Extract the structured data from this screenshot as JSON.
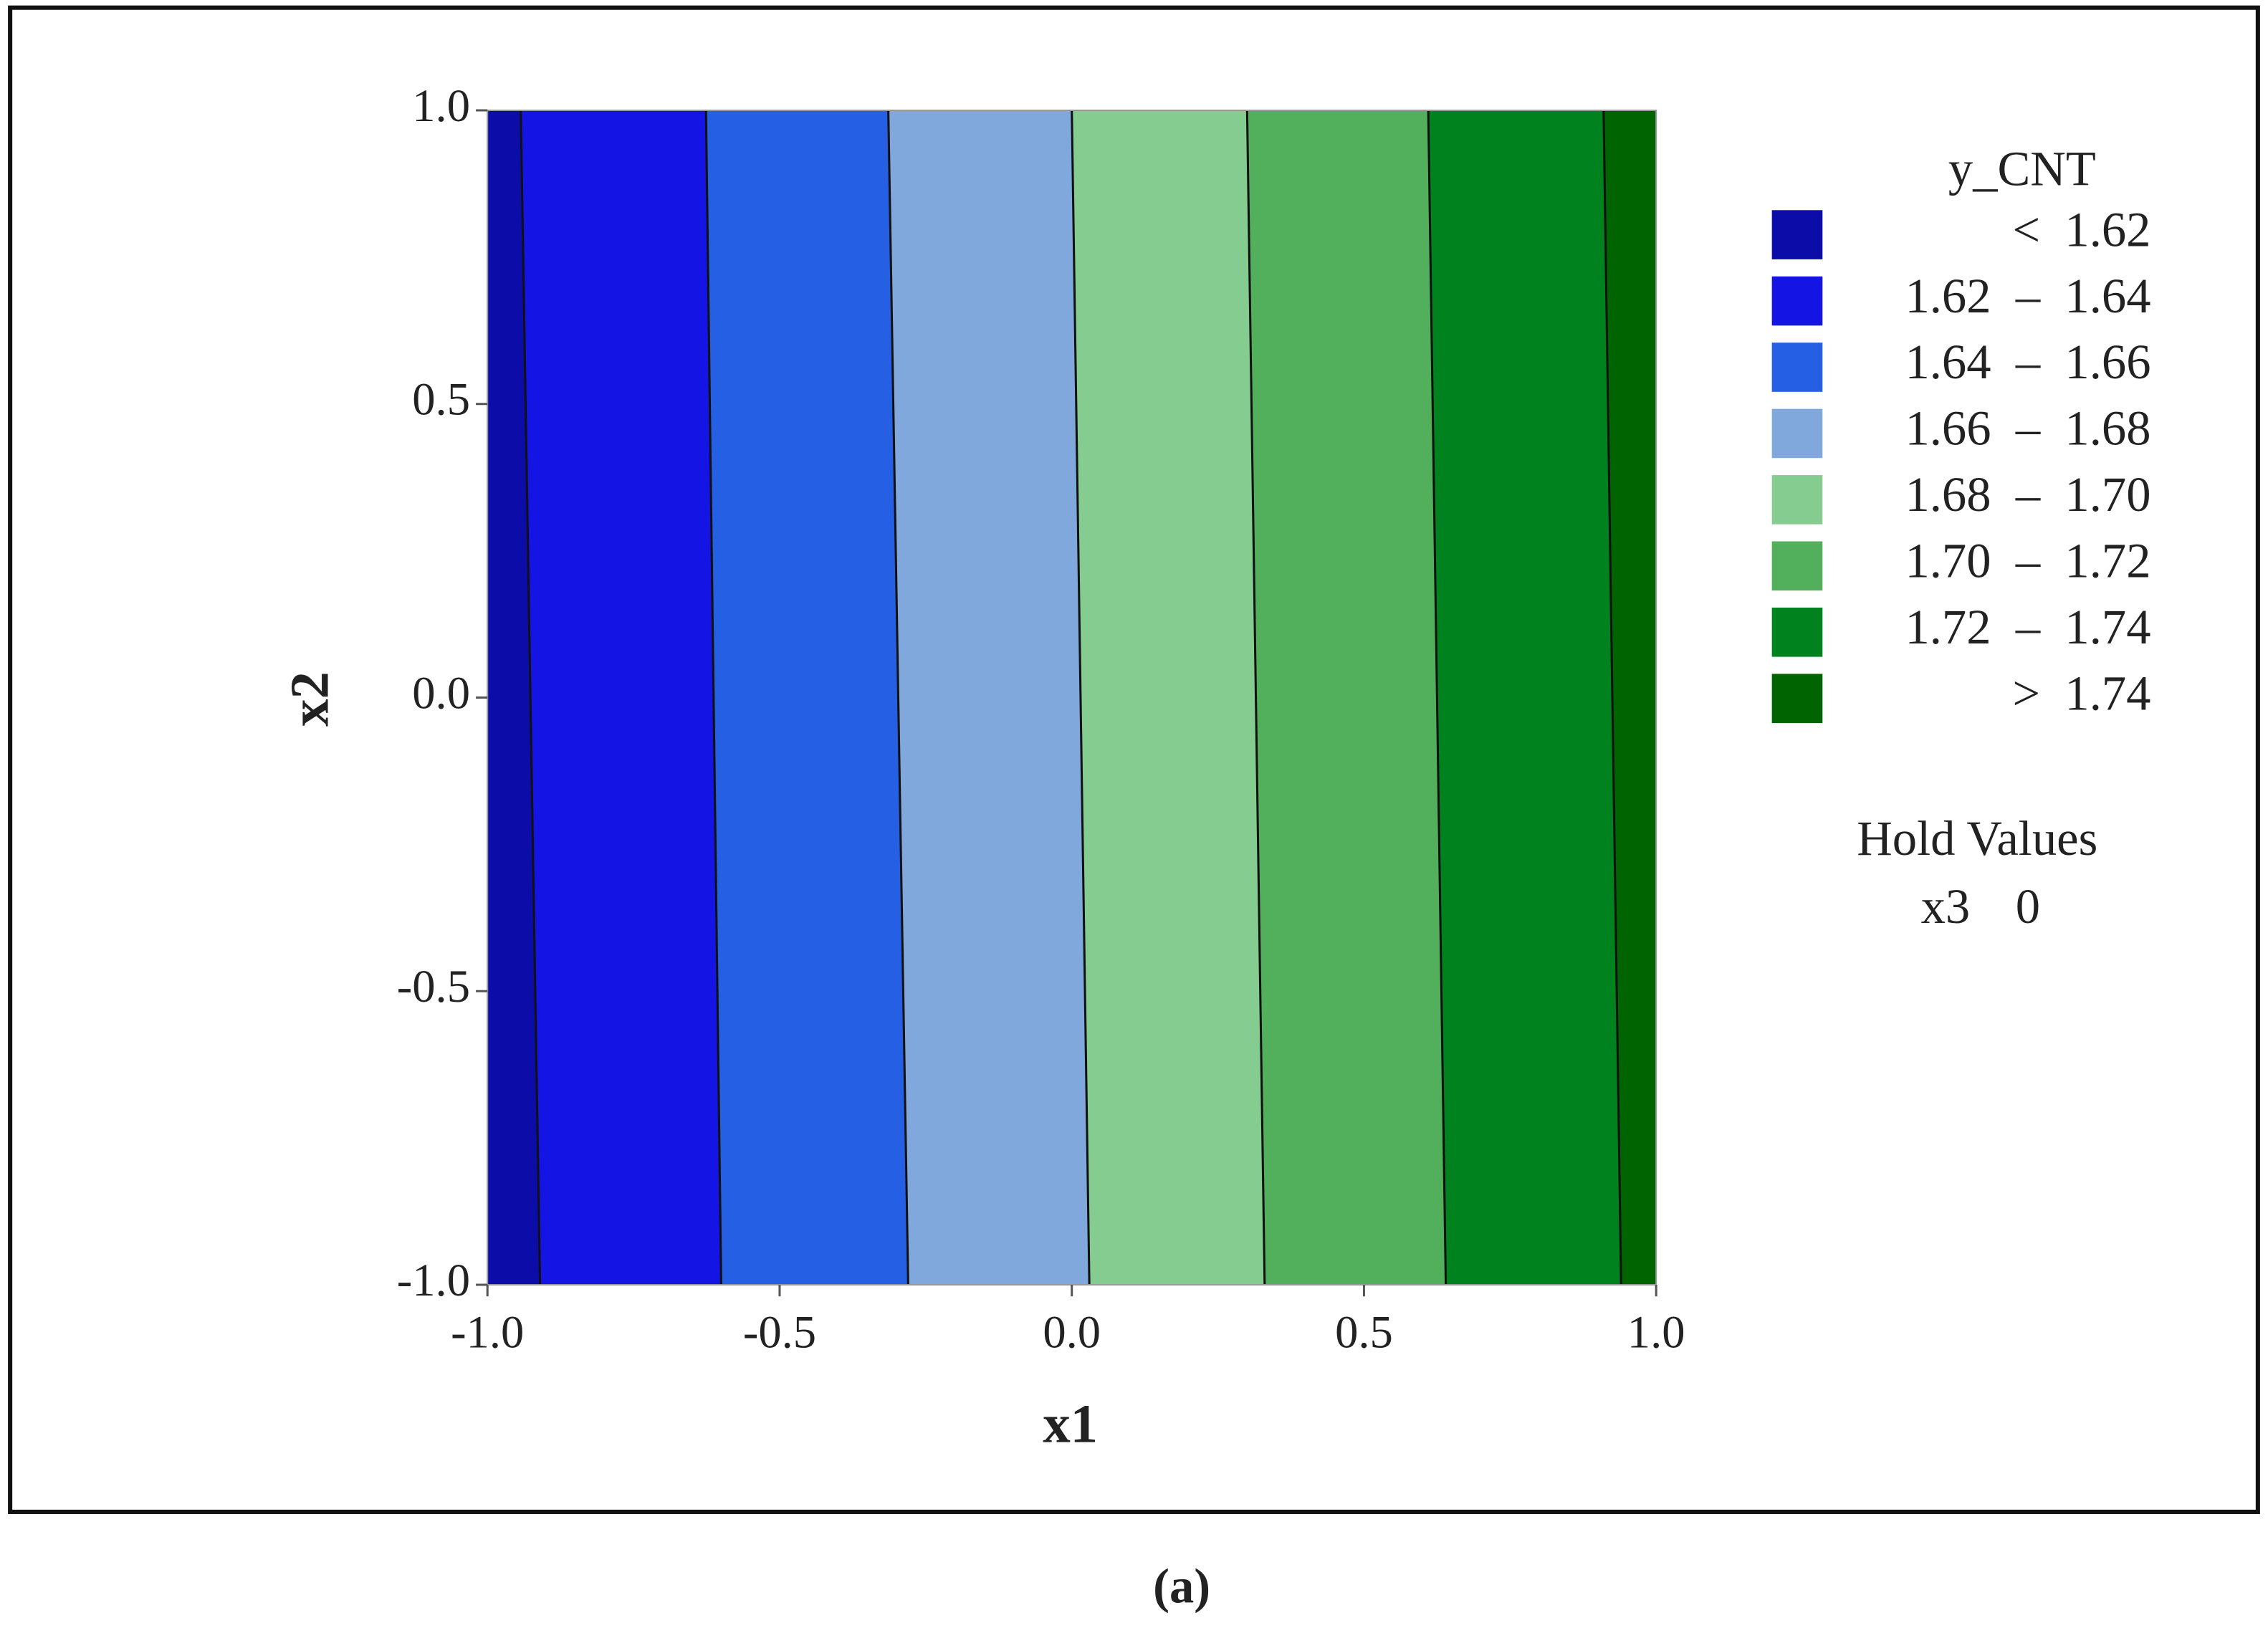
{
  "chart_data": {
    "type": "contour",
    "x_label": "x1",
    "y_label": "x2",
    "xlim": [
      -1,
      1
    ],
    "ylim": [
      -1,
      1
    ],
    "xticks": [
      {
        "value": -1,
        "label": "-1.0"
      },
      {
        "value": -0.5,
        "label": "-0.5"
      },
      {
        "value": 0,
        "label": "0.0"
      },
      {
        "value": 0.5,
        "label": "0.5"
      },
      {
        "value": 1,
        "label": "1.0"
      }
    ],
    "yticks": [
      {
        "value": -1,
        "label": "-1.0"
      },
      {
        "value": -0.5,
        "label": "-0.5"
      },
      {
        "value": 0,
        "label": "0.0"
      },
      {
        "value": 0.5,
        "label": "0.5"
      },
      {
        "value": 1,
        "label": "1.0"
      }
    ],
    "legend_title": "y_CNT",
    "series": [
      {
        "name": "<  1.62",
        "color": "#0c0ca8"
      },
      {
        "name": "1.62  –  1.64",
        "color": "#1414e4"
      },
      {
        "name": "1.64  –  1.66",
        "color": "#2560e4"
      },
      {
        "name": "1.66  –  1.68",
        "color": "#80a8dc"
      },
      {
        "name": "1.68  –  1.70",
        "color": "#84cc90"
      },
      {
        "name": "1.70  –  1.72",
        "color": "#52b05c"
      },
      {
        "name": "1.72  –  1.74",
        "color": "#00821e"
      },
      {
        "name": ">  1.74",
        "color": "#006400"
      }
    ],
    "contour_lines": [
      {
        "x": [
          -0.91,
          -0.943
        ],
        "y": [
          -1,
          1
        ]
      },
      {
        "x": [
          -0.6,
          -0.626
        ],
        "y": [
          -1,
          1
        ]
      },
      {
        "x": [
          -0.28,
          -0.314
        ],
        "y": [
          -1,
          1
        ]
      },
      {
        "x": [
          0.03,
          0.0
        ],
        "y": [
          -1,
          1
        ]
      },
      {
        "x": [
          0.33,
          0.3
        ],
        "y": [
          -1,
          1
        ]
      },
      {
        "x": [
          0.64,
          0.61
        ],
        "y": [
          -1,
          1
        ]
      },
      {
        "x": [
          0.94,
          0.91
        ],
        "y": [
          -1,
          1
        ]
      }
    ],
    "hold_title": "Hold Values",
    "hold": [
      {
        "name": "x3",
        "value": 0
      }
    ]
  },
  "caption": "(a)"
}
